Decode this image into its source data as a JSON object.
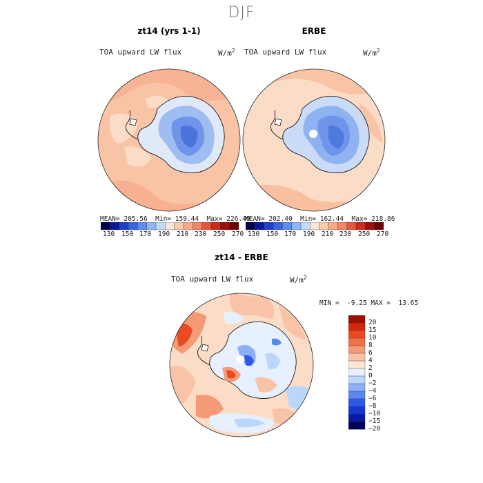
{
  "figure": {
    "title": "DJF"
  },
  "panels": [
    {
      "id": "model",
      "title": "zt14 (yrs 1-1)",
      "variable": "TOA upward LW flux",
      "unit_base": "W/m",
      "unit_exp": "2",
      "stats": {
        "mean_label": "MEAN=",
        "mean": "205.56",
        "min_label": "Min=",
        "min": "159.44",
        "max_label": "Max=",
        "max": "226.40"
      }
    },
    {
      "id": "obs",
      "title": "ERBE",
      "variable": "TOA upward LW flux",
      "unit_base": "W/m",
      "unit_exp": "2",
      "stats": {
        "mean_label": "MEAN=",
        "mean": "202.40",
        "min_label": "Min=",
        "min": "162.44",
        "max_label": "Max=",
        "max": "218.86"
      }
    },
    {
      "id": "diff",
      "title": "zt14 - ERBE",
      "variable": "TOA upward LW flux",
      "unit_base": "W/m",
      "unit_exp": "2",
      "stats": {
        "min_label": "MIN =",
        "min": "-9.25",
        "max_label": "MAX =",
        "max": "13.65"
      }
    }
  ],
  "colorbar_abs": {
    "colors": [
      "#00004a",
      "#0a1a96",
      "#1f3fc8",
      "#3a64e0",
      "#5e8ff0",
      "#8fb6f6",
      "#c3dbfb",
      "#fbe7d5",
      "#fbcbb0",
      "#f8a98a",
      "#f2856a",
      "#e6553c",
      "#cc2a1a",
      "#9e0e0a",
      "#6e0000"
    ],
    "labels": [
      "130",
      "150",
      "170",
      "190",
      "210",
      "230",
      "250",
      "270"
    ]
  },
  "colorbar_diff": {
    "colors": [
      "#00005a",
      "#0a1aa6",
      "#1637d2",
      "#2f58e6",
      "#5a86f0",
      "#8cb0f6",
      "#bcd6fb",
      "#e6f0ff",
      "#fde6d6",
      "#f8c3a6",
      "#f49a76",
      "#f07146",
      "#ea4a22",
      "#d2270c",
      "#9e0e00"
    ],
    "labels": [
      "20",
      "15",
      "10",
      "8",
      "6",
      "4",
      "2",
      "0",
      "−2",
      "−4",
      "−6",
      "−8",
      "−10",
      "−15",
      "−20"
    ]
  }
}
